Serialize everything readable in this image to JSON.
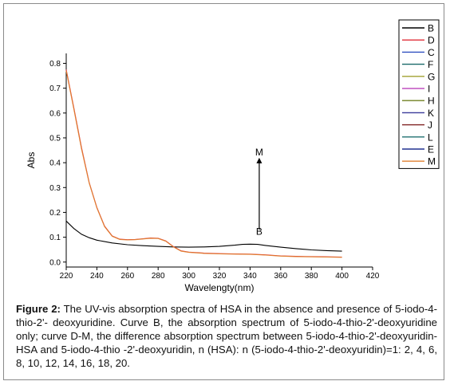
{
  "chart_data": {
    "type": "line",
    "xlabel": "Wavelengty(nm)",
    "ylabel": "Abs",
    "xlim": [
      220,
      420
    ],
    "ylim": [
      -0.02,
      0.84
    ],
    "x_ticks": [
      "220",
      "240",
      "260",
      "280",
      "300",
      "320",
      "340",
      "360",
      "380",
      "400",
      "420"
    ],
    "y_ticks": [
      "0.0",
      "0.1",
      "0.2",
      "0.3",
      "0.4",
      "0.5",
      "0.6",
      "0.7",
      "0.8"
    ],
    "legend_position": "top-right",
    "series": [
      {
        "name": "B",
        "color": "#000000",
        "x": [
          220,
          225,
          230,
          235,
          240,
          250,
          260,
          270,
          280,
          290,
          300,
          310,
          320,
          330,
          335,
          340,
          345,
          350,
          360,
          370,
          380,
          390,
          400
        ],
        "y": [
          0.165,
          0.135,
          0.112,
          0.098,
          0.088,
          0.077,
          0.07,
          0.066,
          0.063,
          0.061,
          0.06,
          0.061,
          0.063,
          0.068,
          0.071,
          0.072,
          0.071,
          0.067,
          0.06,
          0.054,
          0.049,
          0.046,
          0.044
        ]
      },
      {
        "name": "D",
        "color": "#e0303a",
        "x": [
          220,
          225,
          230,
          235,
          240,
          245,
          250,
          255,
          260,
          265,
          270,
          275,
          280,
          285,
          290,
          295,
          300,
          310,
          320,
          330,
          340,
          350,
          360,
          370,
          380,
          390,
          400
        ],
        "y": [
          0.775,
          0.62,
          0.46,
          0.32,
          0.22,
          0.145,
          0.105,
          0.092,
          0.09,
          0.091,
          0.094,
          0.097,
          0.096,
          0.085,
          0.062,
          0.045,
          0.04,
          0.036,
          0.034,
          0.033,
          0.032,
          0.029,
          0.025,
          0.023,
          0.022,
          0.021,
          0.02
        ]
      },
      {
        "name": "C",
        "color": "#3050c0"
      },
      {
        "name": "F",
        "color": "#1a6a6a"
      },
      {
        "name": "G",
        "color": "#a0a030"
      },
      {
        "name": "I",
        "color": "#c050c0"
      },
      {
        "name": "H",
        "color": "#708020"
      },
      {
        "name": "K",
        "color": "#3a3a9a"
      },
      {
        "name": "J",
        "color": "#802020"
      },
      {
        "name": "L",
        "color": "#207070"
      },
      {
        "name": "E",
        "color": "#203090"
      },
      {
        "name": "M",
        "color": "#e08030",
        "x": [
          220,
          225,
          230,
          235,
          240,
          245,
          250,
          255,
          260,
          265,
          270,
          275,
          280,
          285,
          290,
          295,
          300,
          310,
          320,
          330,
          340,
          350,
          360,
          370,
          380,
          390,
          400
        ],
        "y": [
          0.77,
          0.615,
          0.455,
          0.318,
          0.218,
          0.143,
          0.104,
          0.091,
          0.089,
          0.09,
          0.093,
          0.096,
          0.095,
          0.084,
          0.061,
          0.044,
          0.039,
          0.035,
          0.033,
          0.032,
          0.031,
          0.028,
          0.024,
          0.022,
          0.021,
          0.02,
          0.019
        ]
      }
    ],
    "annotations": [
      {
        "text": "M",
        "x": 346,
        "y": 0.43
      },
      {
        "text": "B",
        "x": 346,
        "y": 0.11
      }
    ],
    "arrow": {
      "x": 346,
      "y_from": 0.13,
      "y_to": 0.42
    }
  },
  "caption": {
    "label": "Figure 2:",
    "text": " The UV-vis absorption spectra of HSA in the absence and presence of 5-iodo-4-thio-2'- deoxyuridine. Curve B, the absorption spectrum of 5-iodo-4-thio-2'-deoxyuridine only; curve D-M, the difference absorption spectrum between 5-iodo-4-thio-2'-deoxyuridin-HSA and 5-iodo-4-thio -2'-deoxyuridin, n (HSA): n (5-iodo-4-thio-2'-deoxyuridin)=1: 2, 4, 6, 8, 10, 12, 14, 16, 18, 20."
  }
}
